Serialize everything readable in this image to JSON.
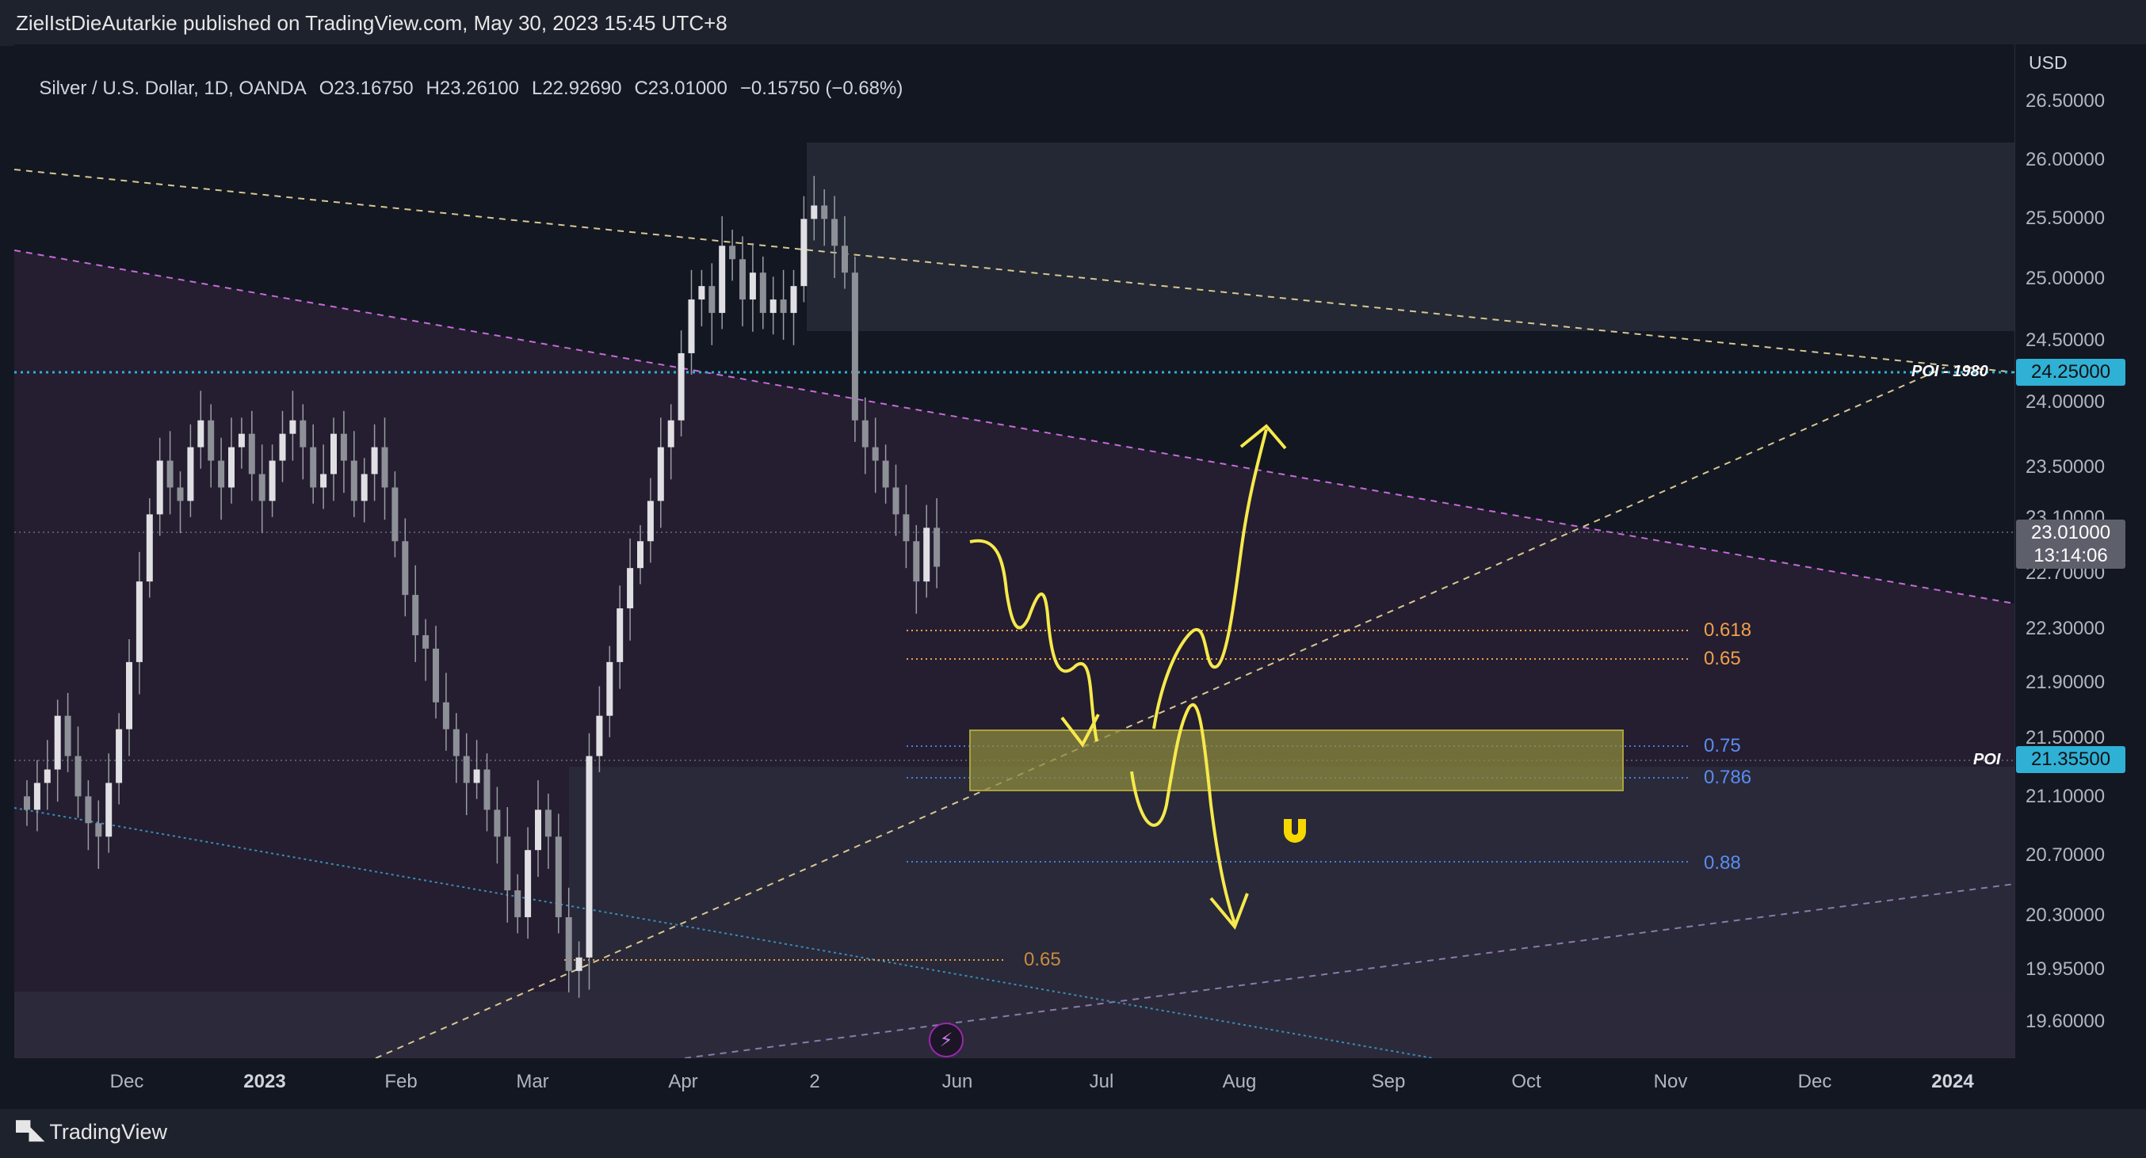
{
  "header": {
    "publisher_line": "ZielIstDieAutarkie published on TradingView.com, May 30, 2023 15:45 UTC+8"
  },
  "symbol": {
    "name": "Silver / U.S. Dollar, 1D, OANDA",
    "open": "O23.16750",
    "high": "H23.26100",
    "low": "L22.92690",
    "close": "C23.01000",
    "change": "−0.15750 (−0.68%)"
  },
  "price_axis": {
    "currency": "USD",
    "ticks": [
      "26.50000",
      "26.00000",
      "25.50000",
      "25.00000",
      "24.50000",
      "24.00000",
      "23.50000",
      "23.10000",
      "22.70000",
      "22.30000",
      "21.90000",
      "21.50000",
      "21.10000",
      "20.70000",
      "20.30000",
      "19.95000",
      "19.60000"
    ],
    "last_price": "23.01000",
    "countdown": "13:14:06",
    "poi_1980_price": "24.25000",
    "poi_price": "21.35500"
  },
  "time_axis": {
    "ticks": [
      "Dec",
      "2023",
      "Feb",
      "Mar",
      "Apr",
      "2",
      "Jun",
      "Jul",
      "Aug",
      "Sep",
      "Oct",
      "Nov",
      "Dec",
      "2024"
    ]
  },
  "annotations": {
    "poi_1980_label": "POI - 1980",
    "poi_label": "POI",
    "fib_0618": "0.618",
    "fib_065_upper": "0.65",
    "fib_075": "0.75",
    "fib_0786": "0.786",
    "fib_088": "0.88",
    "fib_065_lower": "0.65"
  },
  "colors": {
    "background": "#131722",
    "up_candle": "#d6d6da",
    "fib_orange": "#f0a04b",
    "fib_blue": "#4a7bdc",
    "poi_cyan": "#2fb0d5",
    "drawing_yellow": "#f6e94b",
    "zone_purple": "#2a2238",
    "gray_zone": "#262a36"
  },
  "icons": {
    "lightning": "⚡",
    "magnet": "magnet-icon"
  },
  "footer": {
    "brand": "TradingView"
  },
  "chart_data": {
    "type": "candlestick",
    "title": "Silver / U.S. Dollar, 1D, OANDA",
    "ylabel": "USD",
    "ylim": [
      19.35,
      26.9
    ],
    "x_ticks": [
      "Dec",
      "2023",
      "Feb",
      "Mar",
      "Apr",
      "2",
      "Jun",
      "Jul",
      "Aug",
      "Sep",
      "Oct",
      "Nov",
      "Dec",
      "2024"
    ],
    "y_ticks": [
      26.5,
      26.0,
      25.5,
      25.0,
      24.5,
      24.0,
      23.5,
      23.1,
      22.7,
      22.3,
      21.9,
      21.5,
      21.1,
      20.7,
      20.3,
      19.95,
      19.6
    ],
    "last": {
      "open": 23.1675,
      "high": 23.261,
      "low": 22.9269,
      "close": 23.01,
      "change": -0.1575,
      "change_pct": -0.68
    },
    "close_path_approx": [
      21.2,
      21.4,
      21.5,
      21.9,
      21.6,
      21.3,
      21.1,
      21.0,
      21.4,
      21.8,
      22.3,
      22.9,
      23.4,
      23.8,
      23.6,
      23.5,
      23.9,
      24.1,
      23.8,
      23.6,
      23.9,
      24.0,
      23.7,
      23.5,
      23.8,
      24.0,
      24.1,
      23.9,
      23.6,
      23.7,
      24.0,
      23.8,
      23.5,
      23.7,
      23.9,
      23.6,
      23.2,
      22.8,
      22.5,
      22.4,
      22.0,
      21.8,
      21.6,
      21.4,
      21.5,
      21.2,
      21.0,
      20.6,
      20.4,
      20.9,
      21.2,
      21.0,
      20.4,
      20.0,
      20.1,
      21.6,
      21.9,
      22.3,
      22.7,
      23.0,
      23.2,
      23.5,
      23.9,
      24.1,
      24.6,
      25.0,
      25.1,
      24.9,
      25.4,
      25.3,
      25.0,
      25.2,
      24.9,
      25.0,
      24.9,
      25.1,
      25.6,
      25.7,
      25.6,
      25.4,
      25.2,
      24.1,
      23.9,
      23.8,
      23.6,
      23.4,
      23.2,
      22.9,
      23.3,
      23.01
    ],
    "levels": [
      {
        "name": "POI - 1980",
        "price": 24.25
      },
      {
        "name": "POI",
        "price": 21.355
      },
      {
        "name": "0.618",
        "price": 22.3
      },
      {
        "name": "0.65",
        "price": 22.09
      },
      {
        "name": "0.75",
        "price": 21.49
      },
      {
        "name": "0.786",
        "price": 21.2
      },
      {
        "name": "0.88",
        "price": 20.66
      },
      {
        "name": "0.65",
        "price": 19.98
      }
    ],
    "grid": false
  }
}
